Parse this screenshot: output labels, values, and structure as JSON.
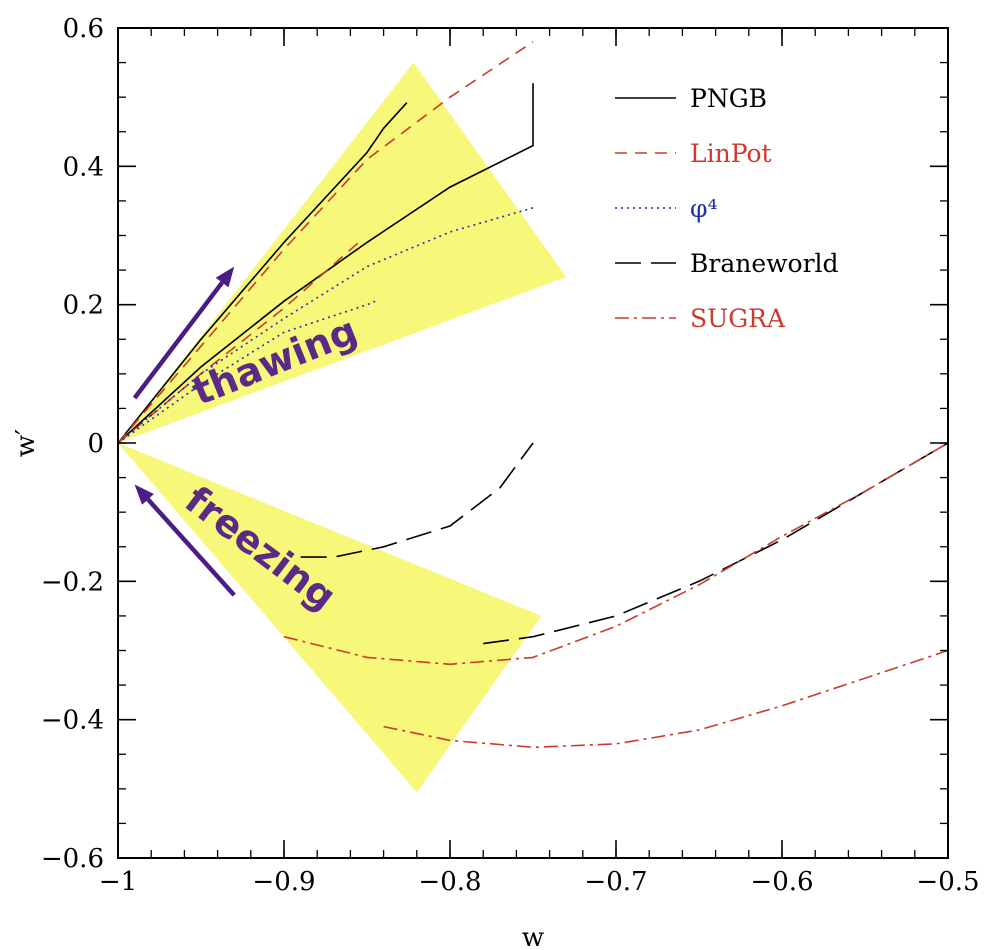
{
  "chart_data": {
    "type": "line",
    "title": "",
    "xlabel": "w",
    "ylabel": "w′",
    "xlim": [
      -1.0,
      -0.5
    ],
    "ylim": [
      -0.6,
      0.6
    ],
    "x_ticks": [
      -1.0,
      -0.9,
      -0.8,
      -0.7,
      -0.6,
      -0.5
    ],
    "x_tick_labels": [
      "−1",
      "−0.9",
      "−0.8",
      "−0.7",
      "−0.6",
      "−0.5"
    ],
    "y_ticks": [
      -0.6,
      -0.4,
      -0.2,
      0.0,
      0.2,
      0.4,
      0.6
    ],
    "y_tick_labels": [
      "−0.6",
      "−0.4",
      "−0.2",
      "0",
      "0.2",
      "0.4",
      "0.6"
    ],
    "x_minor_step": 0.02,
    "y_minor_step": 0.05,
    "grid": false,
    "legend_position": "top-right",
    "regions": [
      {
        "name": "thawing",
        "label": "thawing",
        "color": "#f7f77a",
        "polygon": [
          [
            -1.0,
            0.0
          ],
          [
            -0.822,
            0.55
          ],
          [
            -0.73,
            0.24
          ]
        ]
      },
      {
        "name": "freezing",
        "label": "freezing",
        "color": "#f7f77a",
        "polygon": [
          [
            -1.0,
            0.0
          ],
          [
            -0.745,
            -0.25
          ],
          [
            -0.82,
            -0.505
          ]
        ]
      }
    ],
    "arrows": [
      {
        "name": "thawing-arrow",
        "from": [
          -0.99,
          0.065
        ],
        "to": [
          -0.93,
          0.255
        ],
        "color": "#4b1b86"
      },
      {
        "name": "freezing-arrow",
        "from": [
          -0.93,
          -0.22
        ],
        "to": [
          -0.99,
          -0.06
        ],
        "color": "#4b1b86"
      }
    ],
    "series": [
      {
        "name": "PNGB",
        "color": "#000000",
        "dash": "",
        "points": [
          [
            -1.0,
            0.0
          ],
          [
            -0.95,
            0.15
          ],
          [
            -0.9,
            0.29
          ],
          [
            -0.85,
            0.42
          ],
          [
            -0.84,
            0.455
          ],
          [
            -0.826,
            0.492
          ]
        ]
      },
      {
        "name": "PNGB",
        "color": "#000000",
        "dash": "",
        "points": [
          [
            -1.0,
            0.0
          ],
          [
            -0.95,
            0.11
          ],
          [
            -0.9,
            0.205
          ],
          [
            -0.85,
            0.29
          ],
          [
            -0.8,
            0.37
          ],
          [
            -0.75,
            0.43
          ],
          [
            -0.75,
            0.52
          ]
        ]
      },
      {
        "name": "LinPot",
        "color": "#cc3a2e",
        "dash": "12,8",
        "points": [
          [
            -1.0,
            0.0
          ],
          [
            -0.95,
            0.14
          ],
          [
            -0.9,
            0.28
          ],
          [
            -0.85,
            0.41
          ],
          [
            -0.8,
            0.5
          ],
          [
            -0.75,
            0.58
          ]
        ]
      },
      {
        "name": "LinPot",
        "color": "#cc3a2e",
        "dash": "12,8",
        "points": [
          [
            -1.0,
            0.0
          ],
          [
            -0.95,
            0.1
          ],
          [
            -0.9,
            0.195
          ],
          [
            -0.855,
            0.29
          ]
        ]
      },
      {
        "name": "φ⁴",
        "color": "#1f2fb8",
        "dash": "2,4",
        "points": [
          [
            -1.0,
            0.0
          ],
          [
            -0.95,
            0.1
          ],
          [
            -0.9,
            0.18
          ],
          [
            -0.85,
            0.255
          ],
          [
            -0.8,
            0.305
          ],
          [
            -0.75,
            0.34
          ]
        ]
      },
      {
        "name": "φ⁴",
        "color": "#1f2fb8",
        "dash": "2,4",
        "points": [
          [
            -1.0,
            0.0
          ],
          [
            -0.95,
            0.085
          ],
          [
            -0.9,
            0.16
          ],
          [
            -0.85,
            0.2
          ],
          [
            -0.845,
            0.205
          ]
        ]
      },
      {
        "name": "Braneworld",
        "color": "#000000",
        "dash": "26,10",
        "points": [
          [
            -0.89,
            -0.165
          ],
          [
            -0.87,
            -0.165
          ],
          [
            -0.84,
            -0.15
          ],
          [
            -0.8,
            -0.12
          ],
          [
            -0.77,
            -0.065
          ],
          [
            -0.75,
            0.0
          ]
        ]
      },
      {
        "name": "Braneworld",
        "color": "#000000",
        "dash": "26,10",
        "points": [
          [
            -0.78,
            -0.29
          ],
          [
            -0.75,
            -0.28
          ],
          [
            -0.7,
            -0.25
          ],
          [
            -0.65,
            -0.2
          ],
          [
            -0.6,
            -0.14
          ],
          [
            -0.55,
            -0.07
          ],
          [
            -0.5,
            0.0
          ]
        ]
      },
      {
        "name": "SUGRA",
        "color": "#cc3a2e",
        "dash": "14,5,3,5",
        "points": [
          [
            -0.9,
            -0.28
          ],
          [
            -0.85,
            -0.31
          ],
          [
            -0.8,
            -0.32
          ],
          [
            -0.75,
            -0.31
          ],
          [
            -0.7,
            -0.265
          ],
          [
            -0.65,
            -0.205
          ],
          [
            -0.6,
            -0.135
          ],
          [
            -0.55,
            -0.07
          ],
          [
            -0.5,
            0.0
          ]
        ]
      },
      {
        "name": "SUGRA",
        "color": "#cc3a2e",
        "dash": "14,5,3,5",
        "points": [
          [
            -0.84,
            -0.41
          ],
          [
            -0.8,
            -0.43
          ],
          [
            -0.75,
            -0.44
          ],
          [
            -0.7,
            -0.435
          ],
          [
            -0.65,
            -0.415
          ],
          [
            -0.6,
            -0.38
          ],
          [
            -0.55,
            -0.34
          ],
          [
            -0.5,
            -0.3
          ]
        ]
      }
    ],
    "legend": [
      {
        "label": "PNGB",
        "color": "#000000",
        "dash": ""
      },
      {
        "label": "LinPot",
        "color": "#cc3a2e",
        "dash": "12,8"
      },
      {
        "label": "φ⁴",
        "color": "#1f2fb8",
        "dash": "2,4"
      },
      {
        "label": "Braneworld",
        "color": "#000000",
        "dash": "26,10"
      },
      {
        "label": "SUGRA",
        "color": "#cc3a2e",
        "dash": "14,5,3,5"
      }
    ]
  }
}
